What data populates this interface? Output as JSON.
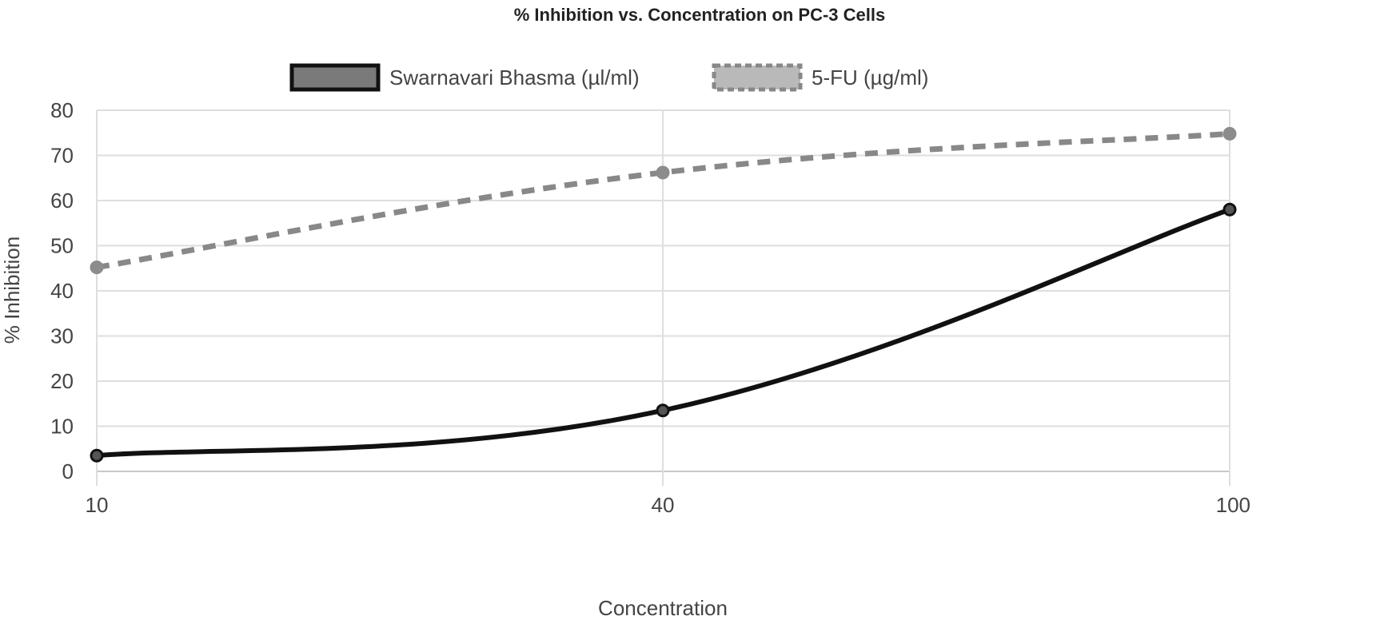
{
  "chart_data": {
    "type": "line",
    "title": "% Inhibition vs. Concentration on PC-3 Cells",
    "xlabel": "Concentration",
    "ylabel": "% Inhibition",
    "categories": [
      "10",
      "40",
      "100"
    ],
    "ylim": [
      0,
      80
    ],
    "yticks": [
      "0",
      "10",
      "20",
      "30",
      "40",
      "50",
      "60",
      "70",
      "80"
    ],
    "grid": true,
    "legend_position": "top",
    "series": [
      {
        "name": "Swarnavari Bhasma (µl/ml)",
        "values": [
          3.5,
          13.5,
          58
        ],
        "color": "#111111",
        "style": "solid"
      },
      {
        "name": "5-FU (µg/ml)",
        "values": [
          45.2,
          66.2,
          74.8
        ],
        "color": "#888888",
        "style": "dashed"
      }
    ]
  }
}
